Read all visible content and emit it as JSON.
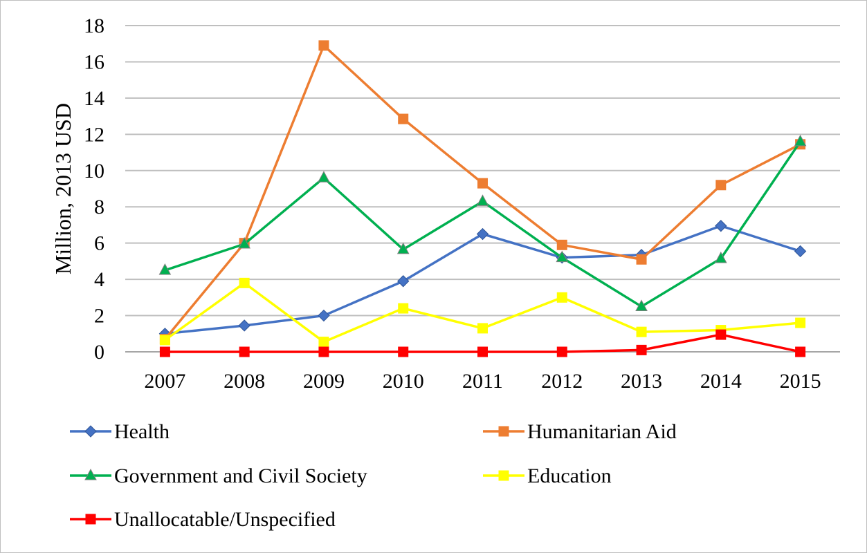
{
  "chart_data": {
    "type": "line",
    "title": "",
    "xlabel": "",
    "ylabel": "Million, 2013 USD",
    "categories": [
      "2007",
      "2008",
      "2009",
      "2010",
      "2011",
      "2012",
      "2013",
      "2014",
      "2015"
    ],
    "ylim": [
      0,
      18
    ],
    "yticks": [
      0,
      2,
      4,
      6,
      8,
      10,
      12,
      14,
      16,
      18
    ],
    "grid": true,
    "legend_position": "bottom",
    "series": [
      {
        "name": "Health",
        "color": "#4472C4",
        "marker": "diamond",
        "values": [
          1.0,
          1.45,
          2.0,
          3.9,
          6.5,
          5.2,
          5.35,
          6.95,
          5.55
        ]
      },
      {
        "name": "Humanitarian Aid",
        "color": "#ED7D31",
        "marker": "square",
        "values": [
          0.7,
          6.0,
          16.9,
          12.85,
          9.3,
          5.9,
          5.1,
          9.2,
          11.45
        ]
      },
      {
        "name": "Government and Civil Society",
        "color": "#00B050",
        "marker": "triangle",
        "values": [
          4.5,
          5.95,
          9.6,
          5.65,
          8.3,
          5.2,
          2.5,
          5.15,
          11.6
        ]
      },
      {
        "name": "Education",
        "color": "#FFFF00",
        "marker": "square",
        "values": [
          0.65,
          3.8,
          0.55,
          2.4,
          1.3,
          3.0,
          1.1,
          1.2,
          1.6
        ]
      },
      {
        "name": "Unallocatable/Unspecified",
        "color": "#FF0000",
        "marker": "square",
        "values": [
          0.0,
          0.0,
          0.0,
          0.0,
          0.0,
          0.0,
          0.1,
          0.95,
          0.0
        ]
      }
    ]
  }
}
